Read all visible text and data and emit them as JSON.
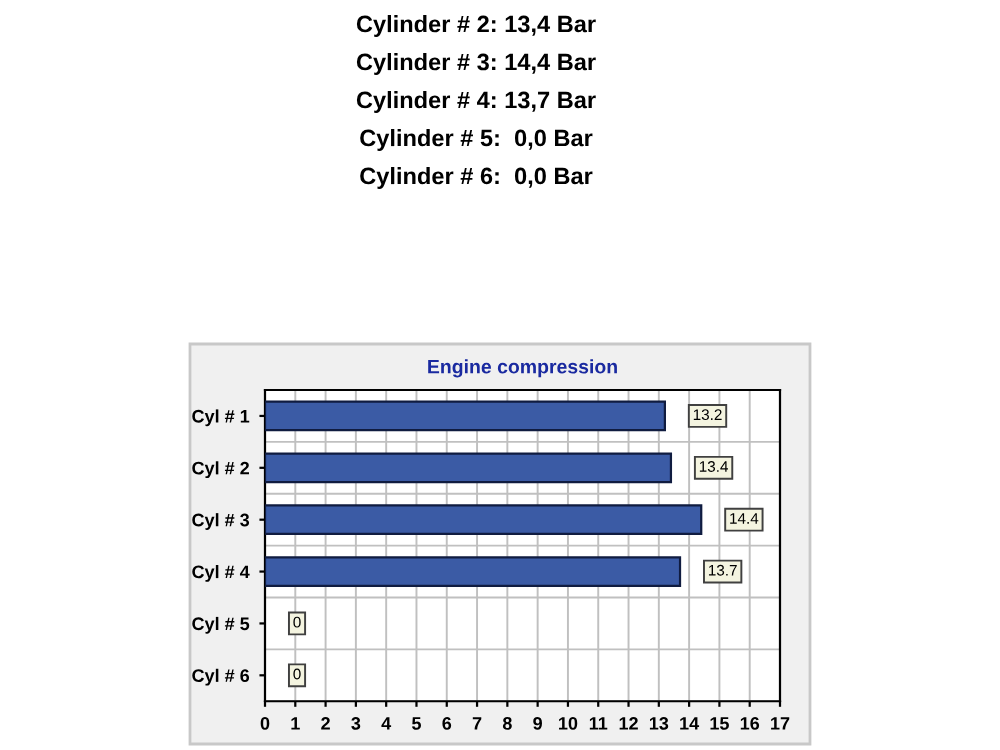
{
  "chart_data": {
    "type": "bar",
    "orientation": "horizontal",
    "title": "Engine compression",
    "categories": [
      "Cyl # 1",
      "Cyl # 2",
      "Cyl # 3",
      "Cyl # 4",
      "Cyl # 5",
      "Cyl # 6"
    ],
    "values": [
      13.2,
      13.4,
      14.4,
      13.7,
      0,
      0
    ],
    "color": "#3b5ba5",
    "xlim": [
      0,
      17
    ],
    "xticks": [
      0,
      1,
      2,
      3,
      4,
      5,
      6,
      7,
      8,
      9,
      10,
      11,
      12,
      13,
      14,
      15,
      16,
      17
    ],
    "grid": true,
    "data_labels": true,
    "annotations": [
      "Cylinder # 2: 13,4 Bar",
      "Cylinder # 3: 14,4 Bar",
      "Cylinder # 4: 13,7 Bar",
      "Cylinder # 5:  0,0 Bar",
      "Cylinder # 6:  0,0 Bar"
    ]
  }
}
